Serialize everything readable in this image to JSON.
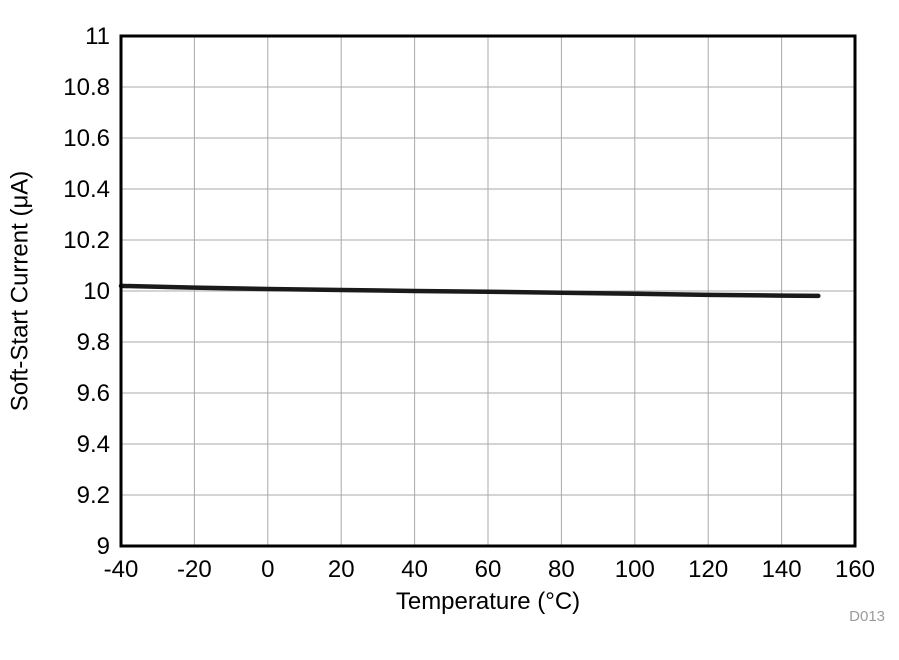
{
  "chart_data": {
    "type": "line",
    "title": "",
    "xlabel": "Temperature (°C)",
    "ylabel": "Soft-Start Current (μA)",
    "xlim": [
      -40,
      160
    ],
    "ylim": [
      9,
      11
    ],
    "xticks": [
      -40,
      -20,
      0,
      20,
      40,
      60,
      80,
      100,
      120,
      140,
      160
    ],
    "xtick_labels": [
      "-40",
      "-20",
      "0",
      "20",
      "40",
      "60",
      "80",
      "100",
      "120",
      "140",
      "160"
    ],
    "yticks": [
      9,
      9.2,
      9.4,
      9.6,
      9.8,
      10,
      10.2,
      10.4,
      10.6,
      10.8,
      11
    ],
    "ytick_labels": [
      "9",
      "9.2",
      "9.4",
      "9.6",
      "9.8",
      "10",
      "10.2",
      "10.4",
      "10.6",
      "10.8",
      "11"
    ],
    "grid": true,
    "legend": false,
    "watermark": "D013",
    "series": [
      {
        "name": "soft-start-current",
        "color": "#1a1a1a",
        "width": 4.5,
        "x": [
          -40,
          -20,
          0,
          20,
          40,
          60,
          80,
          100,
          120,
          140,
          150
        ],
        "y": [
          10.02,
          10.013,
          10.008,
          10.004,
          10.0,
          9.997,
          9.993,
          9.989,
          9.985,
          9.982,
          9.981
        ]
      }
    ],
    "style": {
      "grid_color": "#a9a9a9",
      "axis_color": "#000000",
      "text_color": "#000000",
      "watermark_color": "#9b9b9b",
      "background": "#ffffff"
    }
  }
}
